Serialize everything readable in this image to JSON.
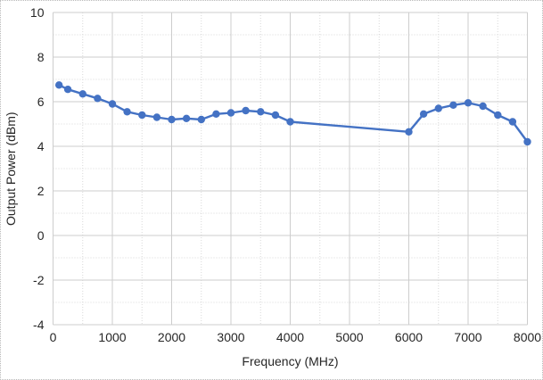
{
  "chart_data": {
    "type": "line",
    "title": "",
    "xlabel": "Frequency (MHz)",
    "ylabel": "Output Power (dBm)",
    "series": [
      {
        "name": "Output Power",
        "x": [
          100,
          250,
          500,
          750,
          1000,
          1250,
          1500,
          1750,
          2000,
          2250,
          2500,
          2750,
          3000,
          3250,
          3500,
          3750,
          4000,
          6000,
          6250,
          6500,
          6750,
          7000,
          7250,
          7500,
          7750,
          8000
        ],
        "y": [
          6.75,
          6.55,
          6.35,
          6.15,
          5.9,
          5.55,
          5.4,
          5.3,
          5.2,
          5.25,
          5.2,
          5.45,
          5.5,
          5.6,
          5.55,
          5.4,
          5.1,
          4.65,
          5.45,
          5.7,
          5.85,
          5.95,
          5.8,
          5.4,
          5.1,
          4.2
        ]
      }
    ],
    "xlim": [
      0,
      8000
    ],
    "ylim": [
      -4,
      10
    ],
    "x_major_ticks": [
      0,
      1000,
      2000,
      3000,
      4000,
      5000,
      6000,
      7000,
      8000
    ],
    "y_major_ticks": [
      10,
      8,
      6,
      4,
      2,
      0,
      -2,
      -4
    ],
    "x_minor_step": 500,
    "y_minor_step": 1,
    "grid": "major solid light-gray, minor dotted, both axes",
    "legend_position": "none",
    "marker": "circle",
    "colors": {
      "series": "#4472C4",
      "marker_fill": "#4472C4",
      "gridline_major": "#cdcdcd",
      "gridline_minor": "#d8d8d8",
      "text": "#262626",
      "background": "#ffffff",
      "border": "#b9b9b9"
    }
  }
}
